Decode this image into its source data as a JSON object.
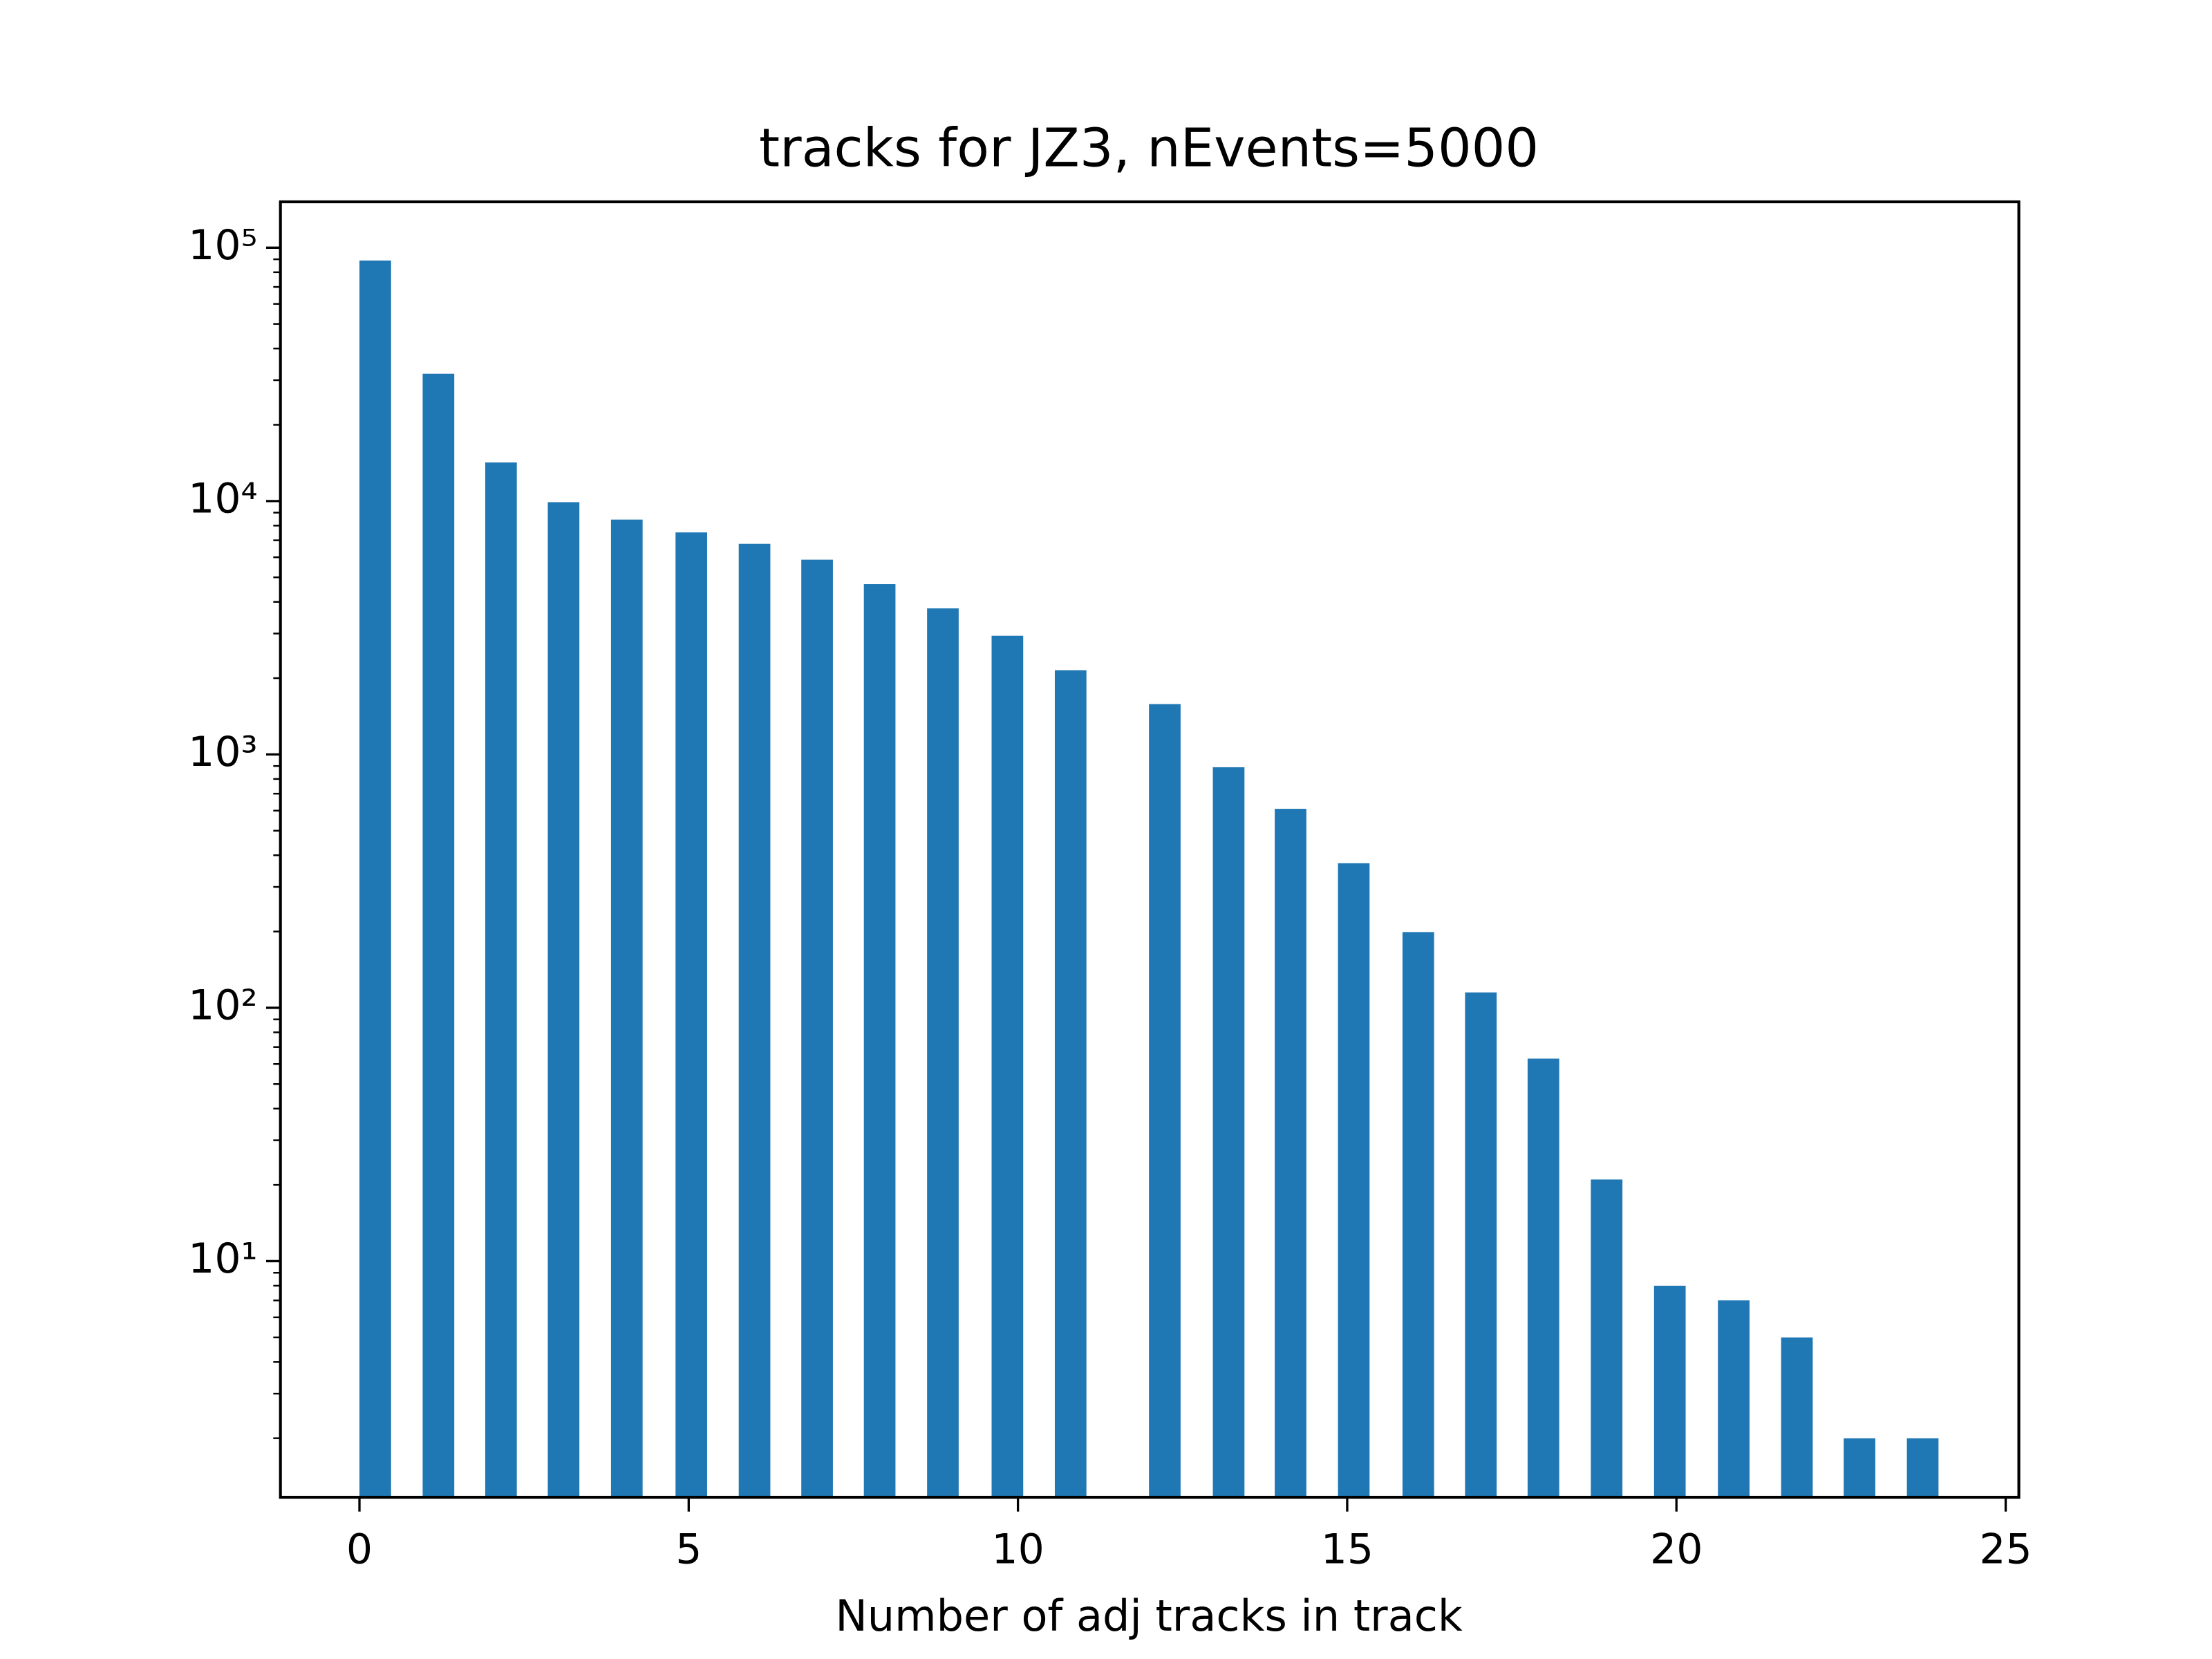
{
  "chart_data": {
    "type": "bar",
    "title": "tracks for JZ3, nEvents=5000",
    "xlabel": "Number of adj tracks in track",
    "x": [
      0.24,
      1.2,
      2.15,
      3.1,
      4.06,
      5.04,
      6.0,
      6.95,
      7.9,
      8.86,
      9.84,
      10.8,
      12.23,
      13.2,
      14.14,
      15.1,
      16.08,
      17.03,
      17.98,
      18.94,
      19.9,
      20.87,
      21.83,
      22.78,
      23.74
    ],
    "values": [
      89000,
      31800,
      14200,
      9900,
      8450,
      7520,
      6780,
      5870,
      4700,
      3770,
      2940,
      2150,
      1580,
      890,
      610,
      372,
      199,
      115,
      63,
      21,
      8,
      7,
      5,
      2,
      2
    ],
    "color": "#1f77b4",
    "xlim": [
      -1.2,
      25.2
    ],
    "xticks": [
      0,
      5,
      10,
      15,
      20,
      25
    ],
    "ylim": [
      1.17,
      151700
    ],
    "yscale": "log",
    "yticks": [
      {
        "value": 10,
        "label": "10¹"
      },
      {
        "value": 100,
        "label": "10²"
      },
      {
        "value": 1000,
        "label": "10³"
      },
      {
        "value": 10000,
        "label": "10⁴"
      },
      {
        "value": 100000,
        "label": "10⁵"
      }
    ]
  }
}
